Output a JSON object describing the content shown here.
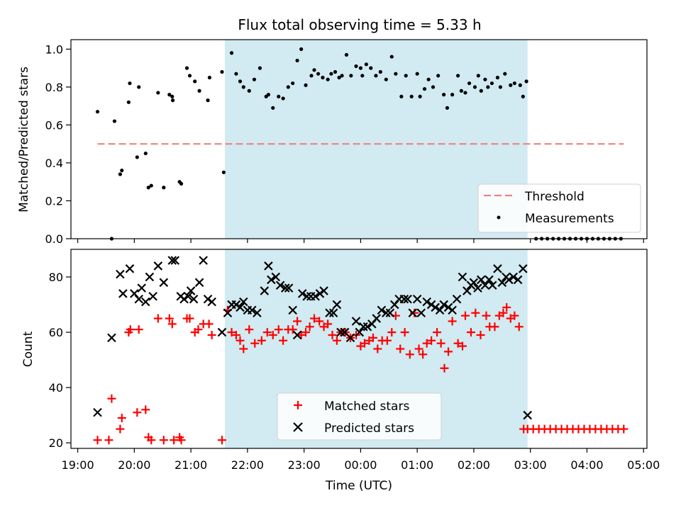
{
  "figure": {
    "title": "Flux total observing time = 5.33 h",
    "xlabel": "Time (UTC)",
    "x_tick_labels": [
      "19:00",
      "20:00",
      "21:00",
      "22:00",
      "23:00",
      "00:00",
      "01:00",
      "02:00",
      "03:00",
      "04:00",
      "05:00"
    ],
    "observing_window_hours": [
      21.6,
      26.95
    ],
    "window_color": "#add8e6"
  },
  "chart_data": [
    {
      "type": "scatter",
      "panel": "top",
      "ylabel": "Matched/Predicted stars",
      "ylim": [
        0,
        1.05
      ],
      "y_tick_labels": [
        "0.0",
        "0.2",
        "0.4",
        "0.6",
        "0.8",
        "1.0"
      ],
      "legend_position": "lower-right",
      "threshold": {
        "name": "Threshold",
        "value": 0.5,
        "x_range": [
          19.35,
          28.65
        ],
        "color": "#f08080",
        "style": "dashed"
      },
      "series": [
        {
          "name": "Measurements",
          "color": "#000000",
          "x": [
            19.35,
            19.6,
            19.65,
            19.75,
            19.78,
            19.9,
            19.92,
            20.05,
            20.08,
            20.2,
            20.25,
            20.3,
            20.42,
            20.52,
            20.62,
            20.67,
            20.68,
            20.8,
            20.83,
            20.93,
            20.98,
            21.07,
            21.15,
            21.3,
            21.33,
            21.55,
            21.58,
            21.72,
            21.8,
            21.87,
            21.93,
            22.03,
            22.12,
            22.22,
            22.33,
            22.37,
            22.45,
            22.55,
            22.63,
            22.72,
            22.8,
            22.88,
            22.95,
            23.03,
            23.13,
            23.18,
            23.25,
            23.33,
            23.42,
            23.48,
            23.55,
            23.62,
            23.67,
            23.75,
            23.83,
            23.92,
            24.0,
            24.03,
            24.1,
            24.18,
            24.27,
            24.35,
            24.45,
            24.55,
            24.62,
            24.72,
            24.8,
            24.9,
            25.0,
            25.05,
            25.13,
            25.2,
            25.28,
            25.37,
            25.47,
            25.53,
            25.62,
            25.72,
            25.78,
            25.85,
            25.92,
            26.02,
            26.08,
            26.13,
            26.2,
            26.25,
            26.32,
            26.42,
            26.47,
            26.55,
            26.65,
            26.72,
            26.82,
            26.87,
            26.93,
            27.1,
            27.2,
            27.3,
            27.4,
            27.5,
            27.6,
            27.7,
            27.8,
            27.9,
            28.0,
            28.1,
            28.2,
            28.3,
            28.4,
            28.5,
            28.6
          ],
          "y": [
            0.67,
            0.0,
            0.62,
            0.34,
            0.36,
            0.72,
            0.82,
            0.43,
            0.8,
            0.45,
            0.27,
            0.28,
            0.77,
            0.27,
            0.76,
            0.75,
            0.73,
            0.3,
            0.29,
            0.9,
            0.86,
            0.83,
            0.78,
            0.73,
            0.85,
            0.88,
            0.35,
            0.98,
            0.87,
            0.83,
            0.8,
            0.78,
            0.84,
            0.9,
            0.75,
            0.76,
            0.69,
            0.75,
            0.74,
            0.8,
            0.82,
            0.94,
            1.0,
            0.81,
            0.86,
            0.89,
            0.87,
            0.85,
            0.84,
            0.87,
            0.88,
            0.85,
            0.86,
            0.97,
            0.86,
            0.91,
            0.9,
            0.86,
            0.92,
            0.9,
            0.86,
            0.88,
            0.84,
            0.96,
            0.87,
            0.75,
            0.86,
            0.75,
            0.87,
            0.75,
            0.79,
            0.84,
            0.8,
            0.86,
            0.76,
            0.69,
            0.76,
            0.86,
            0.78,
            0.77,
            0.82,
            0.8,
            0.86,
            0.78,
            0.84,
            0.8,
            0.82,
            0.85,
            0.8,
            0.87,
            0.81,
            0.82,
            0.81,
            0.75,
            0.83,
            0.0,
            0.0,
            0.0,
            0.0,
            0.0,
            0.0,
            0.0,
            0.0,
            0.0,
            0.0,
            0.0,
            0.0,
            0.0,
            0.0,
            0.0,
            0.0
          ]
        }
      ]
    },
    {
      "type": "scatter",
      "panel": "bottom",
      "ylabel": "Count",
      "ylim": [
        18,
        90
      ],
      "y_tick_labels": [
        "20",
        "40",
        "60",
        "80"
      ],
      "legend_position": "lower-center",
      "series": [
        {
          "name": "Matched stars",
          "marker": "+",
          "color": "#ff0000",
          "x": [
            19.35,
            19.55,
            19.6,
            19.75,
            19.78,
            19.9,
            19.93,
            20.05,
            20.08,
            20.2,
            20.25,
            20.3,
            20.42,
            20.52,
            20.62,
            20.67,
            20.7,
            20.8,
            20.83,
            20.93,
            20.98,
            21.07,
            21.13,
            21.22,
            21.32,
            21.37,
            21.55,
            21.65,
            21.72,
            21.8,
            21.87,
            21.93,
            22.03,
            22.13,
            22.25,
            22.35,
            22.45,
            22.55,
            22.63,
            22.72,
            22.8,
            22.88,
            22.95,
            23.03,
            23.1,
            23.18,
            23.27,
            23.35,
            23.42,
            23.5,
            23.58,
            23.65,
            23.73,
            23.82,
            23.92,
            24.0,
            24.07,
            24.15,
            24.22,
            24.3,
            24.38,
            24.47,
            24.55,
            24.62,
            24.7,
            24.78,
            24.87,
            24.95,
            25.03,
            25.1,
            25.17,
            25.25,
            25.35,
            25.42,
            25.48,
            25.55,
            25.62,
            25.72,
            25.8,
            25.85,
            25.95,
            26.03,
            26.12,
            26.22,
            26.28,
            26.37,
            26.45,
            26.52,
            26.58,
            26.65,
            26.72,
            26.8,
            26.88,
            26.95,
            27.05,
            27.15,
            27.25,
            27.35,
            27.45,
            27.55,
            27.65,
            27.75,
            27.85,
            27.95,
            28.05,
            28.15,
            28.25,
            28.35,
            28.45,
            28.55,
            28.65
          ],
          "y": [
            21,
            21,
            36,
            25,
            29,
            60,
            61,
            31,
            61,
            32,
            22,
            21,
            65,
            21,
            65,
            63,
            21,
            22,
            21,
            65,
            65,
            60,
            61,
            63,
            63,
            59,
            21,
            68,
            60,
            59,
            57,
            54,
            61,
            56,
            57,
            60,
            59,
            61,
            57,
            61,
            61,
            64,
            59,
            60,
            62,
            65,
            64,
            62,
            63,
            59,
            57,
            60,
            60,
            58,
            59,
            55,
            56,
            57,
            58,
            54,
            57,
            57,
            60,
            66,
            54,
            60,
            52,
            67,
            54,
            52,
            56,
            57,
            60,
            56,
            47,
            53,
            64,
            56,
            55,
            66,
            60,
            67,
            59,
            66,
            62,
            62,
            66,
            67,
            69,
            65,
            66,
            62,
            25,
            25,
            25,
            25,
            25,
            25,
            25,
            25,
            25,
            25,
            25,
            25,
            25,
            25,
            25,
            25,
            25,
            25,
            25
          ]
        },
        {
          "name": "Predicted stars",
          "marker": "x",
          "color": "#000000",
          "x": [
            19.35,
            19.6,
            19.75,
            19.8,
            19.92,
            20.0,
            20.08,
            20.13,
            20.2,
            20.27,
            20.33,
            20.42,
            20.52,
            20.67,
            20.72,
            20.82,
            20.88,
            20.95,
            21.0,
            21.05,
            21.15,
            21.22,
            21.3,
            21.37,
            21.55,
            21.65,
            21.72,
            21.8,
            21.87,
            21.93,
            22.0,
            22.08,
            22.17,
            22.3,
            22.37,
            22.42,
            22.5,
            22.58,
            22.67,
            22.73,
            22.8,
            22.88,
            22.97,
            23.05,
            23.12,
            23.2,
            23.28,
            23.35,
            23.45,
            23.52,
            23.58,
            23.65,
            23.72,
            23.82,
            23.92,
            23.98,
            24.05,
            24.12,
            24.2,
            24.28,
            24.37,
            24.45,
            24.52,
            24.6,
            24.68,
            24.77,
            24.83,
            24.92,
            25.0,
            25.07,
            25.17,
            25.25,
            25.32,
            25.4,
            25.47,
            25.55,
            25.62,
            25.7,
            25.8,
            25.88,
            25.95,
            26.0,
            26.07,
            26.13,
            26.2,
            26.27,
            26.33,
            26.42,
            26.5,
            26.57,
            26.62,
            26.7,
            26.78,
            26.87,
            26.95
          ],
          "y": [
            31,
            58,
            81,
            74,
            83,
            74,
            72,
            76,
            71,
            80,
            73,
            84,
            78,
            86,
            86,
            73,
            72,
            73,
            75,
            72,
            78,
            86,
            72,
            71,
            60,
            67,
            70,
            70,
            69,
            71,
            68,
            68,
            67,
            75,
            84,
            79,
            80,
            77,
            76,
            76,
            68,
            59,
            74,
            73,
            73,
            73,
            74,
            75,
            67,
            67,
            70,
            60,
            60,
            58,
            64,
            60,
            62,
            62,
            63,
            65,
            68,
            67,
            67,
            70,
            72,
            72,
            72,
            67,
            72,
            67,
            71,
            70,
            69,
            68,
            70,
            69,
            68,
            72,
            80,
            75,
            77,
            78,
            76,
            79,
            77,
            79,
            77,
            83,
            78,
            80,
            79,
            80,
            79,
            83,
            30
          ]
        }
      ]
    }
  ]
}
